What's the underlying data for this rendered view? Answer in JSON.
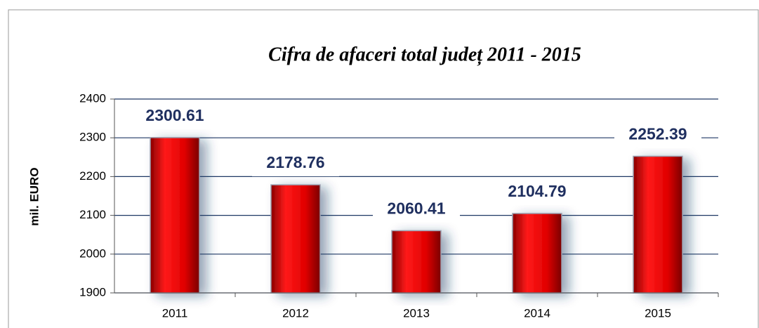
{
  "chart_data": {
    "type": "bar",
    "title": "Cifra de afaceri total județ  2011 - 2015",
    "y_label": "mil. EURO",
    "categories": [
      "2011",
      "2012",
      "2013",
      "2014",
      "2015"
    ],
    "values": [
      2300.61,
      2178.76,
      2060.41,
      2104.79,
      2252.39
    ],
    "color": "#e00000",
    "ylim": [
      1900,
      2400
    ],
    "yticks": [
      1900,
      2000,
      2100,
      2200,
      2300,
      2400
    ],
    "grid": true
  }
}
